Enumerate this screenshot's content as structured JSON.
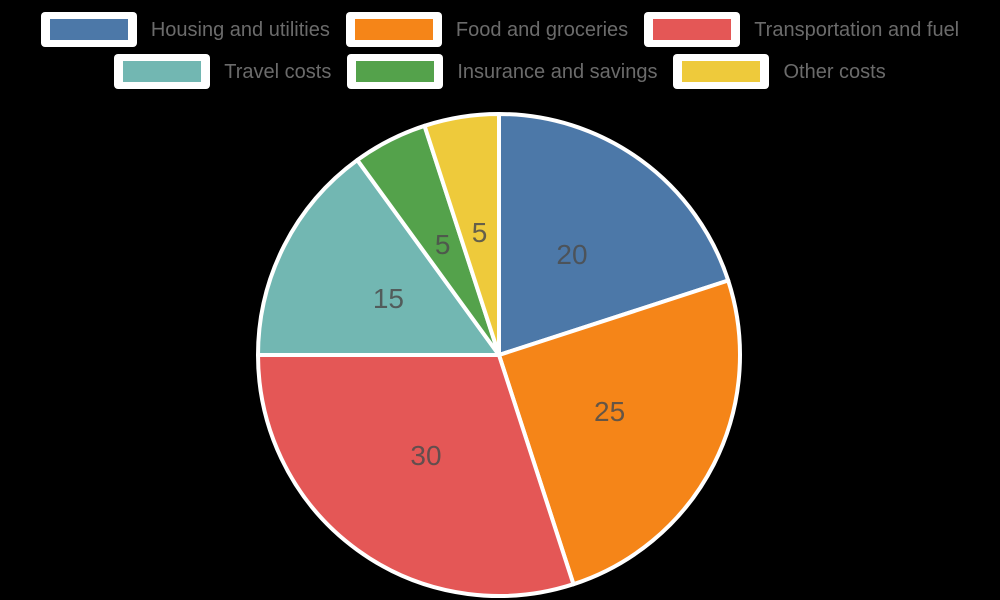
{
  "chart_data": {
    "type": "pie",
    "title": "",
    "categories": [
      "Housing and utilities",
      "Food and groceries",
      "Transportation and fuel",
      "Travel costs",
      "Insurance and savings",
      "Other costs"
    ],
    "values": [
      20,
      25,
      30,
      15,
      5,
      5
    ],
    "value_labels": [
      "20",
      "25",
      "30",
      "15",
      "5",
      "5"
    ],
    "total": 100,
    "colors": [
      "#4C78A8",
      "#F58518",
      "#E45756",
      "#72B7B2",
      "#54A24B",
      "#EECA3B"
    ],
    "start_angle_deg": 0,
    "direction": "clockwise",
    "slice_border_color": "#ffffff",
    "value_label_color": "#4d4d4d",
    "legend_position": "top",
    "legend_rows": [
      [
        0,
        1,
        2
      ],
      [
        3,
        4,
        5
      ]
    ],
    "legend_text_color": "#6b6b6b",
    "legend_swatch_box_color": "#ffffff",
    "background_color": "#000000",
    "grid": false
  }
}
